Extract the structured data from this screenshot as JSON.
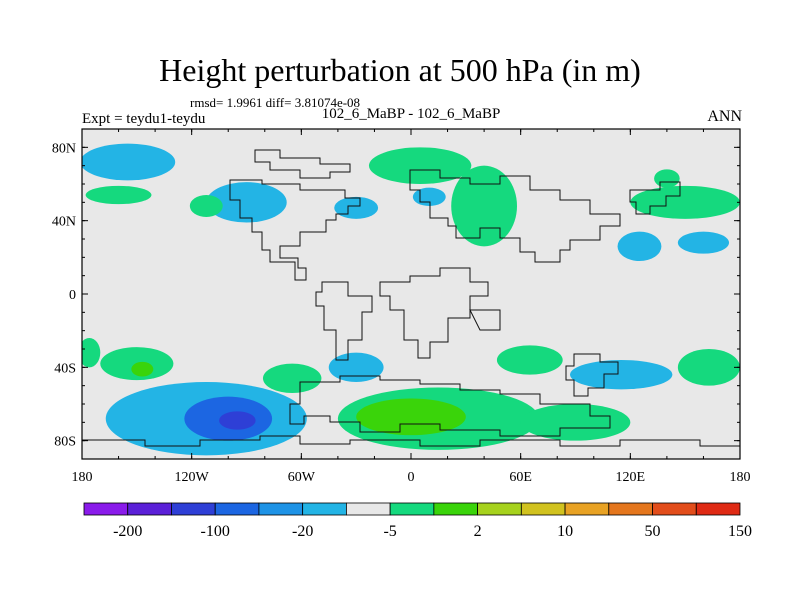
{
  "chart_data": {
    "type": "heatmap",
    "title": "Height perturbation at 500 hPa (in m)",
    "stats_text": "rmsd= 1.9961 diff= 3.81074e-08",
    "center_label": "102_6_MaBP - 102_6_MaBP",
    "left_label": "Expt = teydu1-teydu",
    "right_label": "ANN",
    "x_axis": {
      "range": [
        -180,
        180
      ],
      "ticks": [
        -180,
        -120,
        -60,
        0,
        60,
        120,
        180
      ],
      "tick_labels": [
        "180",
        "120W",
        "60W",
        "0",
        "60E",
        "120E",
        "180"
      ]
    },
    "y_axis": {
      "range": [
        -90,
        90
      ],
      "ticks": [
        80,
        40,
        0,
        -40,
        -80
      ],
      "tick_labels": [
        "80N",
        "40N",
        "0",
        "40S",
        "80S"
      ]
    },
    "colorbar": {
      "colors": [
        "#8a1bea",
        "#5b20d8",
        "#2e3fd6",
        "#1c66e2",
        "#1e93e6",
        "#23b4e5",
        "#e8e8e8",
        "#15d97e",
        "#3ad40a",
        "#a6d21d",
        "#d1c21f",
        "#e8a224",
        "#e4761d",
        "#e24d1b",
        "#df2a14"
      ],
      "labels": [
        "-200",
        "-100",
        "-20",
        "-5",
        "2",
        "10",
        "50",
        "150"
      ]
    },
    "regions": [
      {
        "level": -5,
        "lon": -155,
        "lat": 72,
        "rlon": 26,
        "rlat": 10
      },
      {
        "level": -5,
        "lon": -90,
        "lat": 50,
        "rlon": 22,
        "rlat": 11
      },
      {
        "level": -5,
        "lon": -30,
        "lat": 47,
        "rlon": 12,
        "rlat": 6
      },
      {
        "level": 2,
        "lon": -160,
        "lat": 54,
        "rlon": 18,
        "rlat": 5
      },
      {
        "level": 2,
        "lon": -112,
        "lat": 48,
        "rlon": 9,
        "rlat": 6
      },
      {
        "level": 2,
        "lon": 5,
        "lat": 70,
        "rlon": 28,
        "rlat": 10
      },
      {
        "level": 2,
        "lon": 40,
        "lat": 48,
        "rlon": 18,
        "rlat": 22
      },
      {
        "level": -5,
        "lon": 10,
        "lat": 53,
        "rlon": 9,
        "rlat": 5
      },
      {
        "level": 2,
        "lon": 150,
        "lat": 50,
        "rlon": 30,
        "rlat": 9
      },
      {
        "level": -5,
        "lon": 125,
        "lat": 26,
        "rlon": 12,
        "rlat": 8
      },
      {
        "level": -5,
        "lon": 160,
        "lat": 28,
        "rlon": 14,
        "rlat": 6
      },
      {
        "level": 2,
        "lon": 140,
        "lat": 63,
        "rlon": 7,
        "rlat": 5
      },
      {
        "level": 2,
        "lon": -150,
        "lat": -38,
        "rlon": 20,
        "rlat": 9
      },
      {
        "level": 10,
        "lon": -147,
        "lat": -41,
        "rlon": 6,
        "rlat": 4
      },
      {
        "level": 2,
        "lon": -176,
        "lat": -32,
        "rlon": 6,
        "rlat": 8
      },
      {
        "level": -5,
        "lon": -112,
        "lat": -68,
        "rlon": 55,
        "rlat": 20
      },
      {
        "level": -20,
        "lon": -100,
        "lat": -68,
        "rlon": 24,
        "rlat": 12
      },
      {
        "level": -100,
        "lon": -95,
        "lat": -69,
        "rlon": 10,
        "rlat": 5
      },
      {
        "level": 2,
        "lon": -65,
        "lat": -46,
        "rlon": 16,
        "rlat": 8
      },
      {
        "level": -5,
        "lon": -30,
        "lat": -40,
        "rlon": 15,
        "rlat": 8
      },
      {
        "level": 2,
        "lon": 15,
        "lat": -68,
        "rlon": 55,
        "rlat": 17
      },
      {
        "level": 10,
        "lon": 0,
        "lat": -67,
        "rlon": 30,
        "rlat": 10
      },
      {
        "level": 2,
        "lon": 90,
        "lat": -70,
        "rlon": 30,
        "rlat": 10
      },
      {
        "level": 2,
        "lon": 65,
        "lat": -36,
        "rlon": 18,
        "rlat": 8
      },
      {
        "level": -5,
        "lon": 115,
        "lat": -44,
        "rlon": 28,
        "rlat": 8
      },
      {
        "level": 2,
        "lon": 163,
        "lat": -40,
        "rlon": 17,
        "rlat": 10
      }
    ]
  }
}
